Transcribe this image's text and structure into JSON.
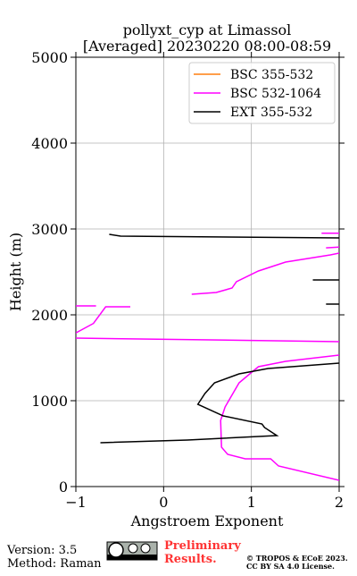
{
  "chart_data": {
    "type": "line",
    "title": [
      "pollyxt_cyp at Limassol",
      "[Averaged] 20230220 08:00-08:59"
    ],
    "x_label": "Angstroem Exponent",
    "y_label": "Height (m)",
    "xlim": [
      -1,
      2
    ],
    "xticks": [
      {
        "value": -1,
        "label": "−1"
      },
      0,
      1,
      2
    ],
    "ylim": [
      0,
      5000
    ],
    "yticks": [
      0,
      1000,
      2000,
      3000,
      4000,
      5000
    ],
    "grid": true,
    "legend": "upper right",
    "series": [
      {
        "name": "BSC 355-532",
        "color": "#ff7f0e",
        "x": [],
        "y": []
      },
      {
        "name": "BSC 532-1064",
        "color": "#ff00ff",
        "x": [
          2.0,
          1.31,
          1.22,
          0.93,
          0.73,
          0.66,
          0.65,
          0.7,
          0.86,
          1.08,
          1.39,
          2.0,
          null,
          -1.0,
          2.0,
          null,
          -1.0,
          -0.8,
          -0.66,
          -0.38,
          null,
          -1.0,
          -0.77,
          null,
          0.32,
          0.6,
          0.78,
          0.83,
          1.08,
          1.39,
          1.9,
          2.0,
          null,
          1.85,
          2.0,
          null,
          1.8,
          2.0
        ],
        "y": [
          73,
          240,
          323,
          323,
          375,
          458,
          771,
          927,
          1208,
          1396,
          1458,
          1531,
          null,
          1729,
          1688,
          null,
          1790,
          1900,
          2094,
          2094,
          null,
          2104,
          2104,
          null,
          2240,
          2260,
          2313,
          2385,
          2510,
          2615,
          2698,
          2719,
          null,
          2780,
          2790,
          null,
          2950,
          2950
        ]
      },
      {
        "name": "EXT 355-532",
        "color": "#000000",
        "x": [
          -0.72,
          0.27,
          1.29,
          1.15,
          1.12,
          0.68,
          0.39,
          0.47,
          0.58,
          0.86,
          1.19,
          2.0,
          null,
          1.7,
          2.0,
          null,
          1.85,
          2.0,
          null,
          -0.62,
          -0.49,
          2.0
        ],
        "y": [
          510,
          542,
          594,
          688,
          729,
          823,
          958,
          1083,
          1208,
          1313,
          1375,
          1438,
          null,
          2406,
          2406,
          null,
          2125,
          2125,
          null,
          2938,
          2917,
          2896
        ]
      }
    ]
  },
  "footer": {
    "version": "Version: 3.5",
    "method": "Method: Raman",
    "preliminary": [
      "Preliminary",
      "Results."
    ],
    "license": [
      "© TROPOS & ECoE 2023.",
      "CC BY SA 4.0 License."
    ]
  }
}
